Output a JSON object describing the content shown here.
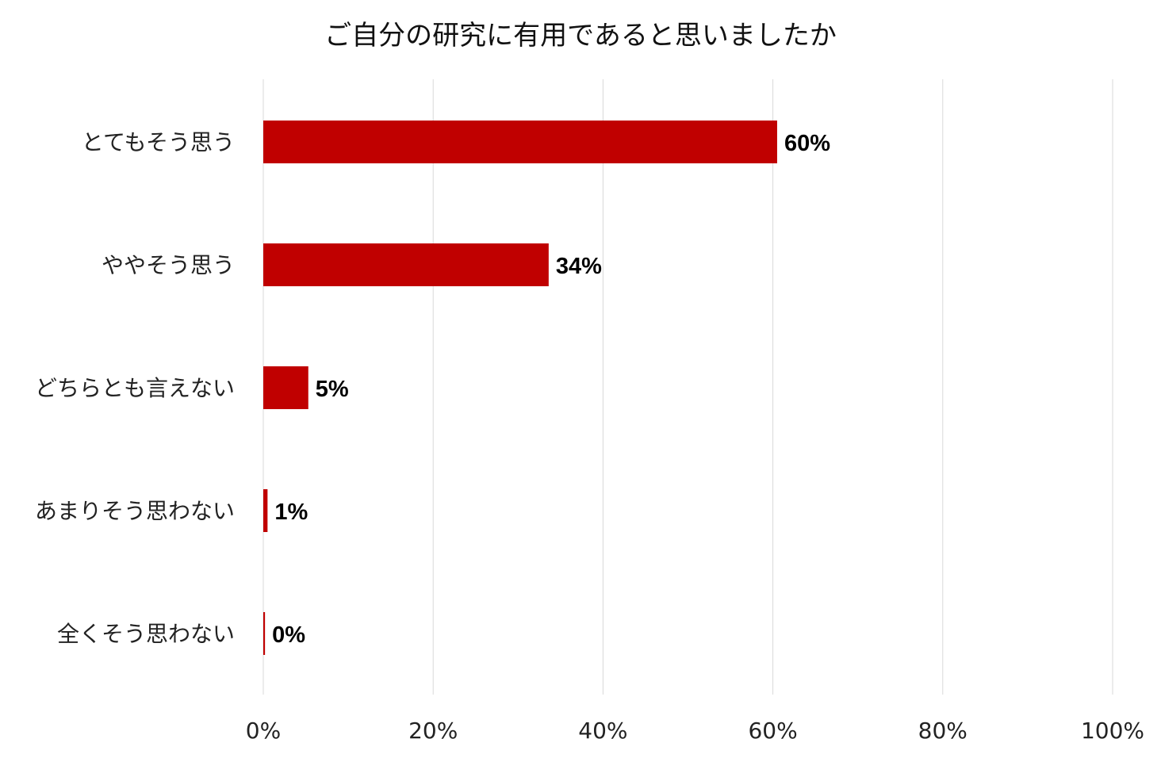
{
  "chart_data": {
    "type": "bar",
    "orientation": "horizontal",
    "title": "ご自分の研究に有用であると思いましたか",
    "categories": [
      "とてもそう思う",
      "ややそう思う",
      "どちらとも言えない",
      "あまりそう思わない",
      "全くそう思わない"
    ],
    "values": [
      60.5,
      33.6,
      5.3,
      0.5,
      0.2
    ],
    "data_labels": [
      "60%",
      "34%",
      "5%",
      "1%",
      "0%"
    ],
    "xlim": [
      0,
      100
    ],
    "xticks": [
      "0%",
      "20%",
      "40%",
      "60%",
      "80%",
      "100%"
    ],
    "xlabel": "",
    "ylabel": "",
    "grid": "vertical",
    "legend": "none",
    "bar_color": "#c00000",
    "grid_color": "#d9d9d9"
  }
}
